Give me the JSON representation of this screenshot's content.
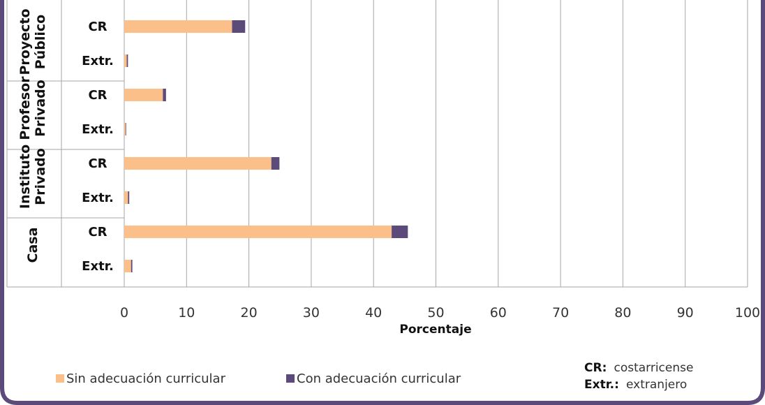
{
  "chart_data": {
    "type": "bar",
    "orientation": "horizontal",
    "stacked": true,
    "xlabel": "Porcentaje",
    "xlim": [
      0,
      100
    ],
    "xticks": [
      "0",
      "10",
      "20",
      "30",
      "40",
      "50",
      "60",
      "70",
      "80",
      "90",
      "100"
    ],
    "grid": true,
    "groups": [
      {
        "label_lines": [
          "Proyecto",
          "Público"
        ],
        "categories": [
          "CR",
          "Extr."
        ]
      },
      {
        "label_lines": [
          "Profesor",
          "Privado"
        ],
        "categories": [
          "CR",
          "Extr."
        ]
      },
      {
        "label_lines": [
          "Instituto",
          "Privado"
        ],
        "categories": [
          "CR",
          "Extr."
        ]
      },
      {
        "label_lines": [
          "Casa"
        ],
        "categories": [
          "CR",
          "Extr."
        ]
      }
    ],
    "series": [
      {
        "name": "Sin adecuación curricular",
        "color": "#FBBF8A",
        "values": [
          17.3,
          0.4,
          6.2,
          0.2,
          23.6,
          0.6,
          42.9,
          1.1
        ]
      },
      {
        "name": "Con adecuación curricular",
        "color": "#5B4A7A",
        "values": [
          2.1,
          0.2,
          0.5,
          0.1,
          1.3,
          0.2,
          2.6,
          0.2
        ]
      }
    ],
    "legend_position": "bottom",
    "notes": [
      {
        "key": "CR:",
        "value": "costarricense"
      },
      {
        "key": "Extr.:",
        "value": "extranjero"
      }
    ]
  },
  "colors": {
    "frame": "#5B4A7A",
    "grid": "#A6A6A6"
  }
}
